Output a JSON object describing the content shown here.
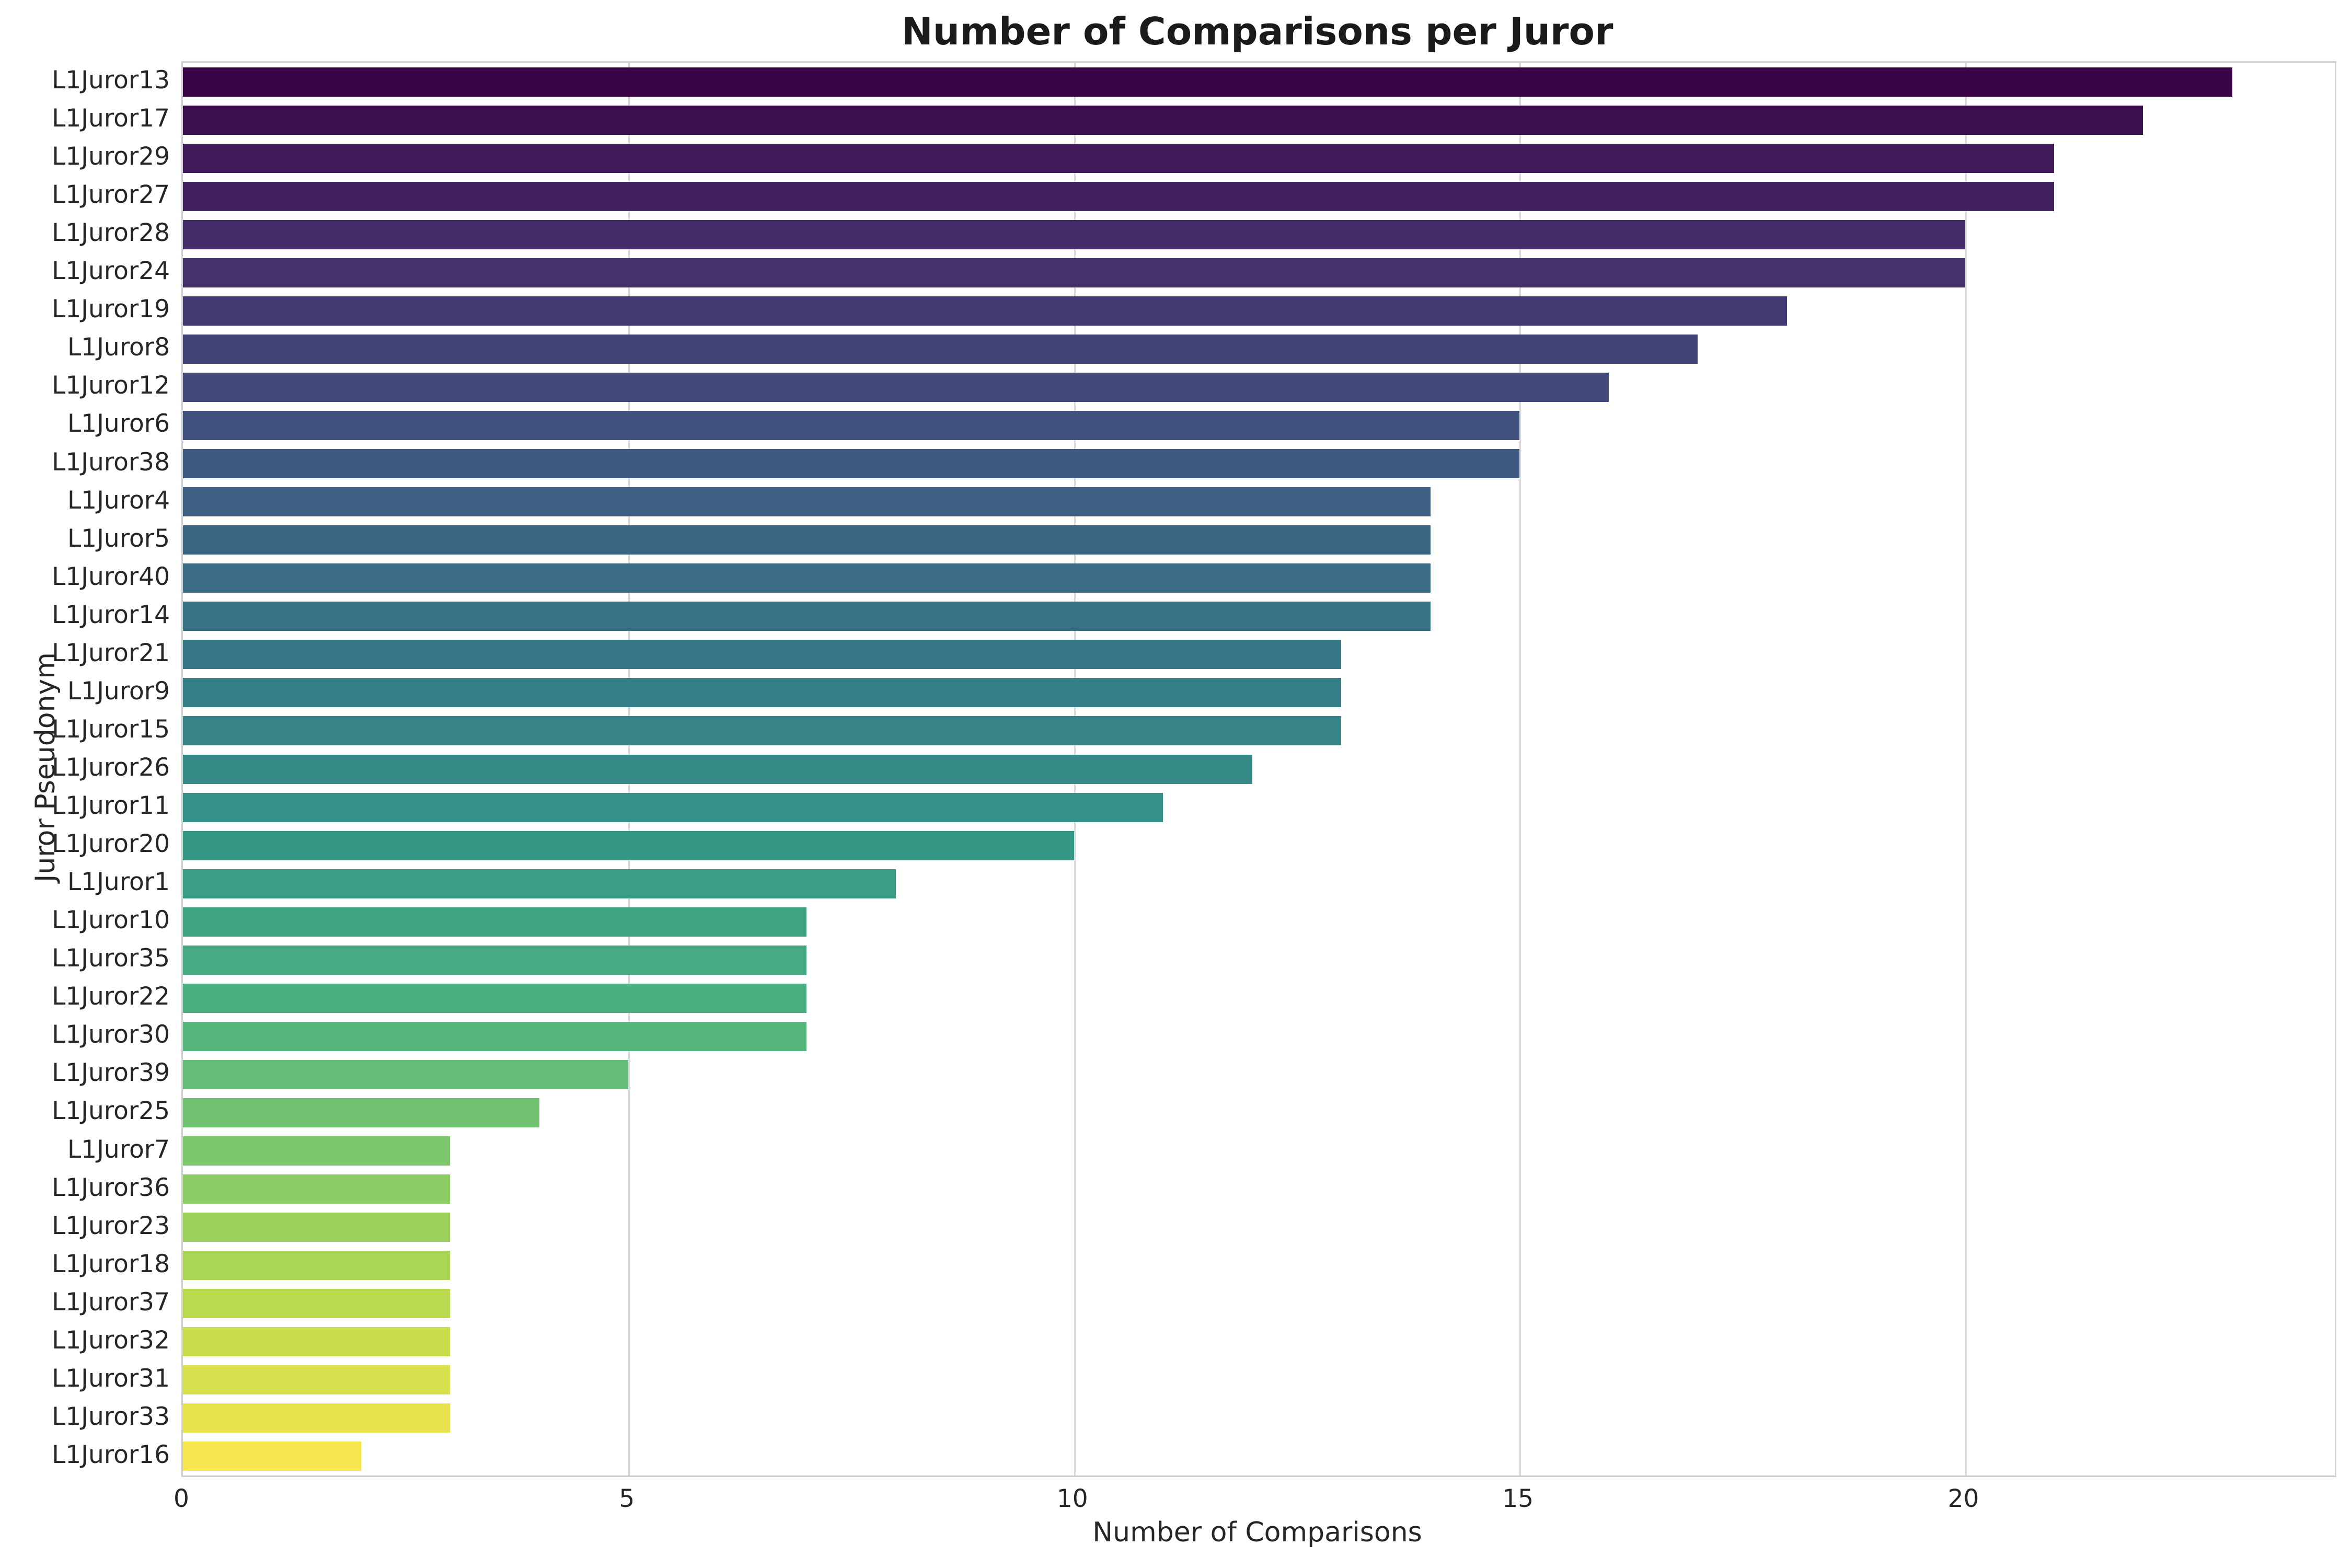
{
  "chart_data": {
    "type": "bar",
    "orientation": "horizontal",
    "title": "Number of Comparisons per Juror",
    "xlabel": "Number of Comparisons",
    "ylabel": "Juror Pseudonym",
    "categories": [
      "L1Juror13",
      "L1Juror17",
      "L1Juror29",
      "L1Juror27",
      "L1Juror28",
      "L1Juror24",
      "L1Juror19",
      "L1Juror8",
      "L1Juror12",
      "L1Juror6",
      "L1Juror38",
      "L1Juror4",
      "L1Juror5",
      "L1Juror40",
      "L1Juror14",
      "L1Juror21",
      "L1Juror9",
      "L1Juror15",
      "L1Juror26",
      "L1Juror11",
      "L1Juror20",
      "L1Juror1",
      "L1Juror10",
      "L1Juror35",
      "L1Juror22",
      "L1Juror30",
      "L1Juror39",
      "L1Juror25",
      "L1Juror7",
      "L1Juror36",
      "L1Juror23",
      "L1Juror18",
      "L1Juror37",
      "L1Juror32",
      "L1Juror31",
      "L1Juror33",
      "L1Juror16"
    ],
    "values": [
      23,
      22,
      21,
      21,
      20,
      20,
      18,
      17,
      16,
      15,
      15,
      14,
      14,
      14,
      14,
      13,
      13,
      13,
      12,
      11,
      10,
      8,
      7,
      7,
      7,
      7,
      5,
      4,
      3,
      3,
      3,
      3,
      3,
      3,
      3,
      3,
      2
    ],
    "x_ticks": [
      0,
      5,
      10,
      15,
      20
    ],
    "xlim": [
      0,
      24.15
    ],
    "grid": "vertical",
    "legend": "none",
    "palette": "viridis",
    "bar_colors": [
      "#440154",
      "#450B5D",
      "#461566",
      "#471E6F",
      "#482878",
      "#46307C",
      "#433981",
      "#414185",
      "#3E4989",
      "#3B518A",
      "#38598C",
      "#34608D",
      "#31688E",
      "#2E6F8E",
      "#2C758E",
      "#297C8E",
      "#26828E",
      "#24898D",
      "#23908C",
      "#21978A",
      "#1F9E89",
      "#25A485",
      "#2AAB81",
      "#30B17D",
      "#35B779",
      "#43BD71",
      "#52C369",
      "#60C860",
      "#6ECE58",
      "#80D24D",
      "#92D642",
      "#A3DA36",
      "#B5DE2B",
      "#C7E02A",
      "#D9E328",
      "#EBE527",
      "#FDE725"
    ],
    "colors": {
      "background": "#ffffff",
      "grid": "#d9d9d9",
      "spine": "#cfcfcf",
      "tick_text": "#262626",
      "title_text": "#1a1a1a"
    }
  }
}
